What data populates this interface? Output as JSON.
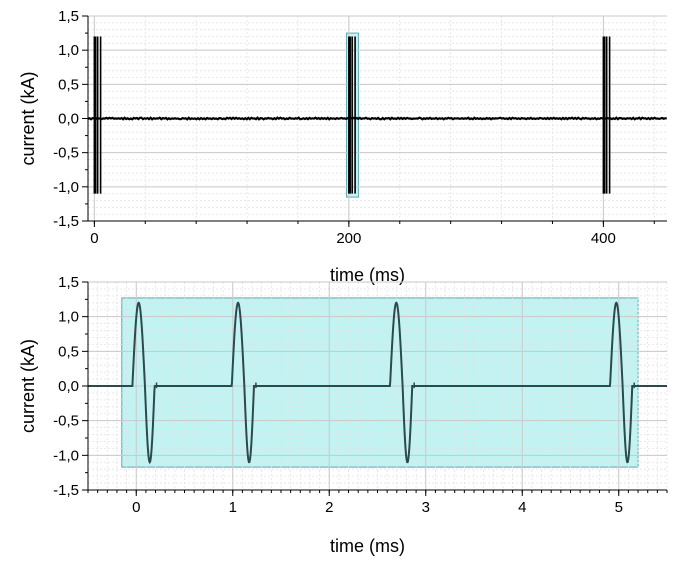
{
  "chart_data": [
    {
      "type": "line",
      "xlabel": "time (ms)",
      "ylabel": "current (kA)",
      "xlim": [
        -5,
        450
      ],
      "ylim": [
        -1.5,
        1.5
      ],
      "xticks": [
        {
          "value": 0,
          "label": "0"
        },
        {
          "value": 200,
          "label": "200"
        },
        {
          "value": 400,
          "label": "400"
        }
      ],
      "yticks": [
        {
          "value": 1.5,
          "label": "1,5"
        },
        {
          "value": 1.0,
          "label": "1,0"
        },
        {
          "value": 0.5,
          "label": "0,5"
        },
        {
          "value": 0.0,
          "label": "0,0"
        },
        {
          "value": -0.5,
          "label": "-0,5"
        },
        {
          "value": -1.0,
          "label": "-1,0"
        },
        {
          "value": -1.5,
          "label": "-1,5"
        }
      ],
      "grid": true,
      "series_color": "#000000",
      "burst_times_ms": [
        0,
        1,
        2.6,
        4.9,
        200,
        201,
        202.6,
        204.9,
        400,
        401,
        402.6,
        404.9
      ],
      "pulse_peak_ka": 1.2,
      "pulse_trough_ka": -1.1,
      "highlight": {
        "x": [
          198.2,
          207.5
        ],
        "y": [
          -1.15,
          1.25
        ],
        "color": "#c2f3f3"
      }
    },
    {
      "type": "line",
      "xlabel": "time (ms)",
      "ylabel": "current (kA)",
      "xlim": [
        -0.5,
        5.5
      ],
      "ylim": [
        -1.5,
        1.5
      ],
      "xticks": [
        {
          "value": 0,
          "label": "0"
        },
        {
          "value": 1,
          "label": "1"
        },
        {
          "value": 2,
          "label": "2"
        },
        {
          "value": 3,
          "label": "3"
        },
        {
          "value": 4,
          "label": "4"
        },
        {
          "value": 5,
          "label": "5"
        }
      ],
      "yticks": [
        {
          "value": 1.5,
          "label": "1,5"
        },
        {
          "value": 1.0,
          "label": "1,0"
        },
        {
          "value": 0.5,
          "label": "0,5"
        },
        {
          "value": 0.0,
          "label": "0,0"
        },
        {
          "value": -0.5,
          "label": "-0,5"
        },
        {
          "value": -1.0,
          "label": "-1,0"
        },
        {
          "value": -1.5,
          "label": "-1,5"
        }
      ],
      "grid": true,
      "series_color": "#2a4a4e",
      "pulse_starts_ms": [
        -0.04,
        0.99,
        2.63,
        4.91
      ],
      "pulse_shape": {
        "peak_ka": 1.2,
        "peak_offset_ms": 0.08,
        "zero_cross_offset_ms": 0.13,
        "trough_ka": -1.1,
        "trough_offset_ms": 0.18,
        "end_offset_ms": 0.23
      },
      "highlight": {
        "x": [
          -0.15,
          5.2
        ],
        "y": [
          -1.17,
          1.27
        ],
        "color": "#c2f3f3"
      }
    }
  ]
}
